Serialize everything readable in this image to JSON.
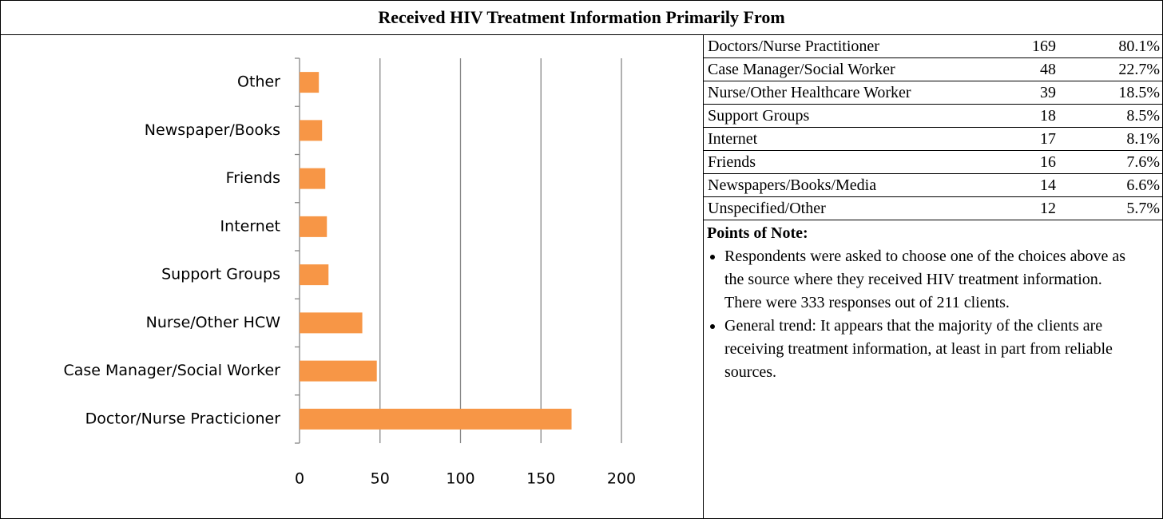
{
  "header": {
    "title": "Received HIV Treatment Information Primarily From"
  },
  "chart_data": {
    "type": "hbar",
    "categories": [
      "Other",
      "Newspaper/Books",
      "Friends",
      "Internet",
      "Support Groups",
      "Nurse/Other HCW",
      "Case Manager/Social Worker",
      "Doctor/Nurse Practicioner"
    ],
    "values": [
      12,
      14,
      16,
      17,
      18,
      39,
      48,
      169
    ],
    "color": "#f79646",
    "xlim": [
      0,
      200
    ],
    "xticks": [
      0,
      50,
      100,
      150,
      200
    ],
    "grid": true
  },
  "table": {
    "rows": [
      [
        "Doctors/Nurse Practitioner",
        "169",
        "80.1%"
      ],
      [
        "Case Manager/Social Worker",
        "48",
        "22.7%"
      ],
      [
        "Nurse/Other Healthcare Worker",
        "39",
        "18.5%"
      ],
      [
        "Support Groups",
        "18",
        "8.5%"
      ],
      [
        "Internet",
        "17",
        "8.1%"
      ],
      [
        "Friends",
        "16",
        "7.6%"
      ],
      [
        "Newspapers/Books/Media",
        "14",
        "6.6%"
      ],
      [
        "Unspecified/Other",
        "12",
        "5.7%"
      ]
    ]
  },
  "notes": {
    "heading": "Points of Note:",
    "items": [
      "Respondents were asked to choose one of the choices above as the source where they received HIV treatment information.  There were 333 responses out of 211 clients.",
      "General trend:  It appears that the majority of the clients are receiving treatment information, at least in part from reliable sources."
    ]
  }
}
